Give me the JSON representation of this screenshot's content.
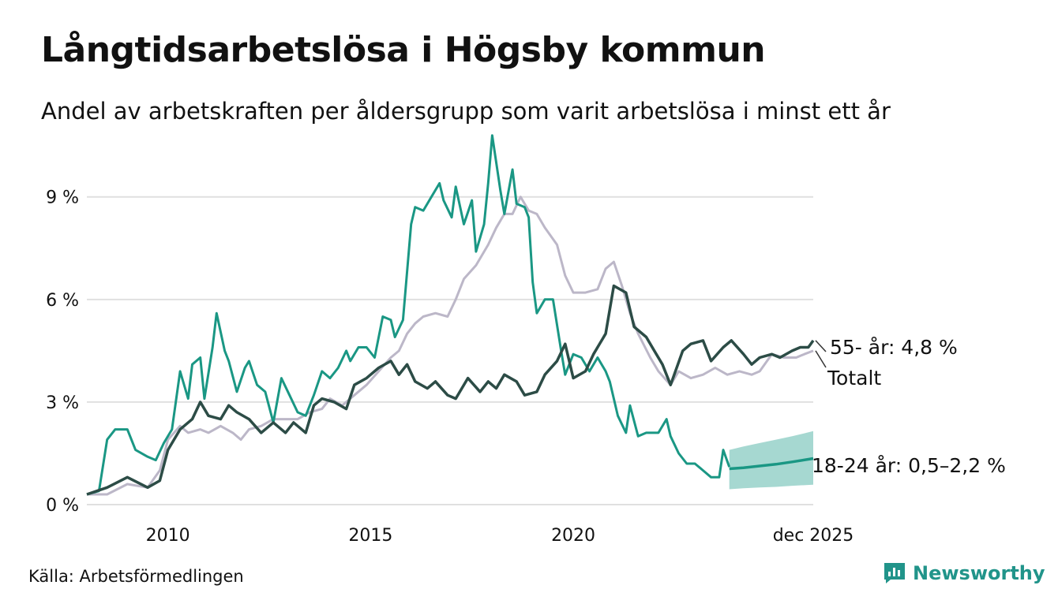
{
  "title": "Långtidsarbetslösa i Högsby kommun",
  "subtitle": "Andel av arbetskraften per åldersgrupp som varit arbetslösa i minst ett år",
  "source": "Källa: Arbetsförmedlingen",
  "brand": "Newsworthy",
  "colors": {
    "youth": "#1a9784",
    "youth_band": "#a6d8d1",
    "older": "#2c4c46",
    "total": "#bcb7c8",
    "grid": "#e0e0e0",
    "brand": "#21948a"
  },
  "chart_data": {
    "type": "line",
    "title": "Långtidsarbetslösa i Högsby kommun",
    "xlabel": "",
    "ylabel": "",
    "xlim": [
      2008.0,
      2025.92
    ],
    "ylim": [
      0,
      11
    ],
    "yticks": [
      0,
      3,
      6,
      9
    ],
    "ytick_labels": [
      "0 %",
      "3 %",
      "6 %",
      "9 %"
    ],
    "xticks": [
      2010,
      2015,
      2020,
      2025.92
    ],
    "xtick_labels": [
      "2010",
      "2015",
      "2020",
      "dec 2025"
    ],
    "series": [
      {
        "name": "Totalt",
        "label": "Totalt",
        "key": "total",
        "points": [
          [
            2008.0,
            0.3
          ],
          [
            2008.5,
            0.3
          ],
          [
            2009.0,
            0.6
          ],
          [
            2009.5,
            0.5
          ],
          [
            2009.8,
            1.0
          ],
          [
            2010.0,
            1.9
          ],
          [
            2010.3,
            2.3
          ],
          [
            2010.5,
            2.1
          ],
          [
            2010.8,
            2.2
          ],
          [
            2011.0,
            2.1
          ],
          [
            2011.3,
            2.3
          ],
          [
            2011.6,
            2.1
          ],
          [
            2011.8,
            1.9
          ],
          [
            2012.0,
            2.2
          ],
          [
            2012.3,
            2.3
          ],
          [
            2012.6,
            2.5
          ],
          [
            2012.9,
            2.5
          ],
          [
            2013.2,
            2.5
          ],
          [
            2013.5,
            2.7
          ],
          [
            2013.8,
            2.8
          ],
          [
            2014.0,
            3.1
          ],
          [
            2014.3,
            2.9
          ],
          [
            2014.6,
            3.2
          ],
          [
            2014.9,
            3.5
          ],
          [
            2015.2,
            3.9
          ],
          [
            2015.5,
            4.3
          ],
          [
            2015.7,
            4.5
          ],
          [
            2015.9,
            5.0
          ],
          [
            2016.1,
            5.3
          ],
          [
            2016.3,
            5.5
          ],
          [
            2016.6,
            5.6
          ],
          [
            2016.9,
            5.5
          ],
          [
            2017.1,
            6.0
          ],
          [
            2017.3,
            6.6
          ],
          [
            2017.6,
            7.0
          ],
          [
            2017.9,
            7.6
          ],
          [
            2018.1,
            8.1
          ],
          [
            2018.3,
            8.5
          ],
          [
            2018.5,
            8.5
          ],
          [
            2018.7,
            9.0
          ],
          [
            2018.9,
            8.6
          ],
          [
            2019.1,
            8.5
          ],
          [
            2019.3,
            8.1
          ],
          [
            2019.6,
            7.6
          ],
          [
            2019.8,
            6.7
          ],
          [
            2020.0,
            6.2
          ],
          [
            2020.3,
            6.2
          ],
          [
            2020.6,
            6.3
          ],
          [
            2020.8,
            6.9
          ],
          [
            2021.0,
            7.1
          ],
          [
            2021.2,
            6.4
          ],
          [
            2021.4,
            5.6
          ],
          [
            2021.6,
            5.0
          ],
          [
            2021.9,
            4.3
          ],
          [
            2022.1,
            3.9
          ],
          [
            2022.4,
            3.5
          ],
          [
            2022.6,
            3.9
          ],
          [
            2022.9,
            3.7
          ],
          [
            2023.2,
            3.8
          ],
          [
            2023.5,
            4.0
          ],
          [
            2023.8,
            3.8
          ],
          [
            2024.1,
            3.9
          ],
          [
            2024.4,
            3.8
          ],
          [
            2024.6,
            3.9
          ],
          [
            2024.9,
            4.4
          ],
          [
            2025.2,
            4.3
          ],
          [
            2025.5,
            4.3
          ],
          [
            2025.7,
            4.4
          ],
          [
            2025.92,
            4.5
          ]
        ]
      },
      {
        "name": "55- år",
        "label": "55- år: 4,8 %",
        "key": "older",
        "points": [
          [
            2008.0,
            0.3
          ],
          [
            2008.5,
            0.5
          ],
          [
            2009.0,
            0.8
          ],
          [
            2009.5,
            0.5
          ],
          [
            2009.8,
            0.7
          ],
          [
            2010.0,
            1.6
          ],
          [
            2010.3,
            2.2
          ],
          [
            2010.6,
            2.5
          ],
          [
            2010.8,
            3.0
          ],
          [
            2011.0,
            2.6
          ],
          [
            2011.3,
            2.5
          ],
          [
            2011.5,
            2.9
          ],
          [
            2011.7,
            2.7
          ],
          [
            2012.0,
            2.5
          ],
          [
            2012.3,
            2.1
          ],
          [
            2012.6,
            2.4
          ],
          [
            2012.9,
            2.1
          ],
          [
            2013.1,
            2.4
          ],
          [
            2013.4,
            2.1
          ],
          [
            2013.6,
            2.9
          ],
          [
            2013.8,
            3.1
          ],
          [
            2014.1,
            3.0
          ],
          [
            2014.4,
            2.8
          ],
          [
            2014.6,
            3.5
          ],
          [
            2014.9,
            3.7
          ],
          [
            2015.2,
            4.0
          ],
          [
            2015.5,
            4.2
          ],
          [
            2015.7,
            3.8
          ],
          [
            2015.9,
            4.1
          ],
          [
            2016.1,
            3.6
          ],
          [
            2016.4,
            3.4
          ],
          [
            2016.6,
            3.6
          ],
          [
            2016.9,
            3.2
          ],
          [
            2017.1,
            3.1
          ],
          [
            2017.4,
            3.7
          ],
          [
            2017.7,
            3.3
          ],
          [
            2017.9,
            3.6
          ],
          [
            2018.1,
            3.4
          ],
          [
            2018.3,
            3.8
          ],
          [
            2018.6,
            3.6
          ],
          [
            2018.8,
            3.2
          ],
          [
            2019.1,
            3.3
          ],
          [
            2019.3,
            3.8
          ],
          [
            2019.6,
            4.2
          ],
          [
            2019.8,
            4.7
          ],
          [
            2020.0,
            3.7
          ],
          [
            2020.3,
            3.9
          ],
          [
            2020.5,
            4.4
          ],
          [
            2020.8,
            5.0
          ],
          [
            2021.0,
            6.4
          ],
          [
            2021.3,
            6.2
          ],
          [
            2021.5,
            5.2
          ],
          [
            2021.8,
            4.9
          ],
          [
            2022.0,
            4.5
          ],
          [
            2022.2,
            4.1
          ],
          [
            2022.4,
            3.5
          ],
          [
            2022.7,
            4.5
          ],
          [
            2022.9,
            4.7
          ],
          [
            2023.2,
            4.8
          ],
          [
            2023.4,
            4.2
          ],
          [
            2023.7,
            4.6
          ],
          [
            2023.9,
            4.8
          ],
          [
            2024.2,
            4.4
          ],
          [
            2024.4,
            4.1
          ],
          [
            2024.6,
            4.3
          ],
          [
            2024.9,
            4.4
          ],
          [
            2025.1,
            4.3
          ],
          [
            2025.4,
            4.5
          ],
          [
            2025.6,
            4.6
          ],
          [
            2025.8,
            4.6
          ],
          [
            2025.92,
            4.8
          ]
        ]
      },
      {
        "name": "18-24 år",
        "label": "18-24 år: 0,5–2,2 %",
        "key": "youth",
        "points": [
          [
            2008.0,
            0.3
          ],
          [
            2008.3,
            0.4
          ],
          [
            2008.5,
            1.9
          ],
          [
            2008.7,
            2.2
          ],
          [
            2009.0,
            2.2
          ],
          [
            2009.2,
            1.6
          ],
          [
            2009.5,
            1.4
          ],
          [
            2009.7,
            1.3
          ],
          [
            2009.9,
            1.8
          ],
          [
            2010.1,
            2.2
          ],
          [
            2010.3,
            3.9
          ],
          [
            2010.5,
            3.1
          ],
          [
            2010.6,
            4.1
          ],
          [
            2010.8,
            4.3
          ],
          [
            2010.9,
            3.1
          ],
          [
            2011.1,
            4.6
          ],
          [
            2011.2,
            5.6
          ],
          [
            2011.4,
            4.5
          ],
          [
            2011.5,
            4.2
          ],
          [
            2011.7,
            3.3
          ],
          [
            2011.9,
            4.0
          ],
          [
            2012.0,
            4.2
          ],
          [
            2012.2,
            3.5
          ],
          [
            2012.4,
            3.3
          ],
          [
            2012.6,
            2.4
          ],
          [
            2012.8,
            3.7
          ],
          [
            2013.0,
            3.2
          ],
          [
            2013.2,
            2.7
          ],
          [
            2013.4,
            2.6
          ],
          [
            2013.6,
            3.2
          ],
          [
            2013.8,
            3.9
          ],
          [
            2014.0,
            3.7
          ],
          [
            2014.2,
            4.0
          ],
          [
            2014.4,
            4.5
          ],
          [
            2014.5,
            4.2
          ],
          [
            2014.7,
            4.6
          ],
          [
            2014.9,
            4.6
          ],
          [
            2015.1,
            4.3
          ],
          [
            2015.3,
            5.5
          ],
          [
            2015.5,
            5.4
          ],
          [
            2015.6,
            4.9
          ],
          [
            2015.8,
            5.4
          ],
          [
            2016.0,
            8.2
          ],
          [
            2016.1,
            8.7
          ],
          [
            2016.3,
            8.6
          ],
          [
            2016.5,
            9.0
          ],
          [
            2016.7,
            9.4
          ],
          [
            2016.8,
            8.9
          ],
          [
            2017.0,
            8.4
          ],
          [
            2017.1,
            9.3
          ],
          [
            2017.3,
            8.2
          ],
          [
            2017.5,
            8.9
          ],
          [
            2017.6,
            7.4
          ],
          [
            2017.8,
            8.2
          ],
          [
            2017.9,
            9.4
          ],
          [
            2018.0,
            10.8
          ],
          [
            2018.2,
            9.2
          ],
          [
            2018.3,
            8.5
          ],
          [
            2018.5,
            9.8
          ],
          [
            2018.6,
            8.8
          ],
          [
            2018.8,
            8.7
          ],
          [
            2018.9,
            8.4
          ],
          [
            2019.0,
            6.5
          ],
          [
            2019.1,
            5.6
          ],
          [
            2019.3,
            6.0
          ],
          [
            2019.5,
            6.0
          ],
          [
            2019.7,
            4.5
          ],
          [
            2019.8,
            3.8
          ],
          [
            2020.0,
            4.4
          ],
          [
            2020.2,
            4.3
          ],
          [
            2020.4,
            3.9
          ],
          [
            2020.6,
            4.3
          ],
          [
            2020.8,
            3.9
          ],
          [
            2020.9,
            3.6
          ],
          [
            2021.1,
            2.6
          ],
          [
            2021.3,
            2.1
          ],
          [
            2021.4,
            2.9
          ],
          [
            2021.6,
            2.0
          ],
          [
            2021.8,
            2.1
          ],
          [
            2022.1,
            2.1
          ],
          [
            2022.3,
            2.5
          ],
          [
            2022.4,
            2.0
          ],
          [
            2022.6,
            1.5
          ],
          [
            2022.8,
            1.2
          ],
          [
            2023.0,
            1.2
          ],
          [
            2023.2,
            1.0
          ],
          [
            2023.4,
            0.8
          ],
          [
            2023.6,
            0.8
          ],
          [
            2023.7,
            1.6
          ],
          [
            2023.85,
            1.1
          ]
        ]
      },
      {
        "name": "18-24 år prognos",
        "key": "youth_forecast",
        "points": [
          [
            2023.85,
            1.05
          ],
          [
            2024.2,
            1.08
          ],
          [
            2024.6,
            1.13
          ],
          [
            2025.0,
            1.18
          ],
          [
            2025.4,
            1.25
          ],
          [
            2025.92,
            1.35
          ]
        ],
        "band_lower": [
          0.45,
          0.48,
          0.5,
          0.52,
          0.55,
          0.58
        ],
        "band_upper": [
          1.6,
          1.7,
          1.8,
          1.9,
          2.0,
          2.15
        ]
      }
    ]
  }
}
